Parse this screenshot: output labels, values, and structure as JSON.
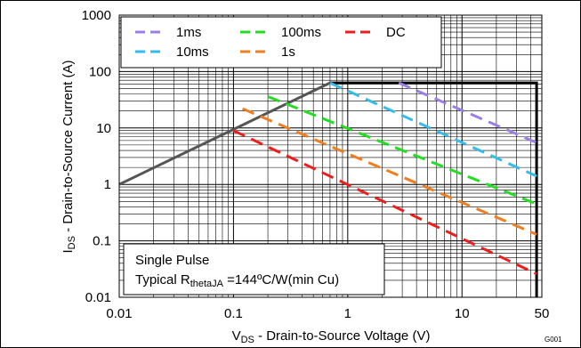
{
  "chart_data": {
    "type": "line",
    "xscale": "log",
    "yscale": "log",
    "xlim": [
      0.01,
      50
    ],
    "ylim": [
      0.01,
      1000
    ],
    "x_ticks": [
      {
        "value": 0.01,
        "label": "0.01"
      },
      {
        "value": 0.1,
        "label": "0.1"
      },
      {
        "value": 1,
        "label": "1"
      },
      {
        "value": 10,
        "label": "10"
      },
      {
        "value": 50,
        "label": "50"
      }
    ],
    "y_ticks": [
      {
        "value": 0.01,
        "label": "0.01"
      },
      {
        "value": 0.1,
        "label": "0.1"
      },
      {
        "value": 1,
        "label": "1"
      },
      {
        "value": 10,
        "label": "10"
      },
      {
        "value": 100,
        "label": "100"
      },
      {
        "value": 1000,
        "label": "1000"
      }
    ],
    "xlabel": {
      "main": "V",
      "sub": "DS",
      "rest": " - Drain-to-Source Voltage (V)"
    },
    "ylabel": {
      "main": "I",
      "sub": "DS",
      "rest": " - Drain-to-Source Current (A)"
    },
    "grid": true,
    "legend_position": "top-left",
    "series": [
      {
        "name": "1ms",
        "color": "#9a7fe6",
        "dash": true,
        "x": [
          2.8,
          45
        ],
        "y": [
          63,
          5.5
        ]
      },
      {
        "name": "10ms",
        "color": "#33bde8",
        "dash": true,
        "x": [
          0.7,
          45
        ],
        "y": [
          63,
          1.4
        ]
      },
      {
        "name": "100ms",
        "color": "#22dd22",
        "dash": true,
        "x": [
          0.2,
          45
        ],
        "y": [
          36,
          0.45
        ]
      },
      {
        "name": "1s",
        "color": "#f07d1f",
        "dash": true,
        "x": [
          0.12,
          45
        ],
        "y": [
          22,
          0.13
        ]
      },
      {
        "name": "DC",
        "color": "#ee1d1d",
        "dash": true,
        "x": [
          0.1,
          45
        ],
        "y": [
          9,
          0.026
        ]
      }
    ],
    "boundary_lines": [
      {
        "color": "#555555",
        "x": [
          0.01,
          0.7
        ],
        "y": [
          1,
          63
        ]
      },
      {
        "color": "#000000",
        "x": [
          0.7,
          45,
          45
        ],
        "y": [
          63,
          63,
          0.01
        ]
      }
    ],
    "annotation": {
      "line1": "Single Pulse",
      "line2_main": "Typical R",
      "line2_sub": "thetaJA",
      "line2_rest": " =144ºC/W(min Cu)"
    },
    "figure_code": "G001"
  }
}
